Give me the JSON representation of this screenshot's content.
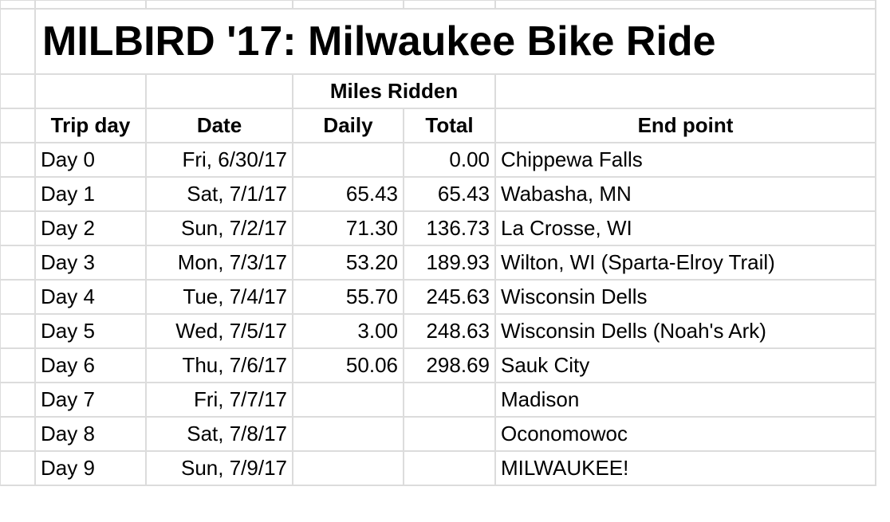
{
  "title": "MILBIRD '17: Milwaukee Bike Ride",
  "group_header": "Miles Ridden",
  "columns": [
    "Trip day",
    "Date",
    "Daily",
    "Total",
    "End point"
  ],
  "rows": [
    {
      "day": "Day 0",
      "date": "Fri, 6/30/17",
      "daily": "",
      "total": "0.00",
      "end": "Chippewa Falls"
    },
    {
      "day": "Day 1",
      "date": "Sat, 7/1/17",
      "daily": "65.43",
      "total": "65.43",
      "end": "Wabasha, MN"
    },
    {
      "day": "Day 2",
      "date": "Sun, 7/2/17",
      "daily": "71.30",
      "total": "136.73",
      "end": "La Crosse, WI"
    },
    {
      "day": "Day 3",
      "date": "Mon, 7/3/17",
      "daily": "53.20",
      "total": "189.93",
      "end": "Wilton, WI (Sparta-Elroy Trail)"
    },
    {
      "day": "Day 4",
      "date": "Tue, 7/4/17",
      "daily": "55.70",
      "total": "245.63",
      "end": "Wisconsin Dells"
    },
    {
      "day": "Day 5",
      "date": "Wed, 7/5/17",
      "daily": "3.00",
      "total": "248.63",
      "end": "Wisconsin Dells (Noah's Ark)"
    },
    {
      "day": "Day 6",
      "date": "Thu, 7/6/17",
      "daily": "50.06",
      "total": "298.69",
      "end": "Sauk City"
    },
    {
      "day": "Day 7",
      "date": "Fri, 7/7/17",
      "daily": "",
      "total": "",
      "end": "Madison"
    },
    {
      "day": "Day 8",
      "date": "Sat, 7/8/17",
      "daily": "",
      "total": "",
      "end": "Oconomowoc"
    },
    {
      "day": "Day 9",
      "date": "Sun, 7/9/17",
      "daily": "",
      "total": "",
      "end": "MILWAUKEE!"
    }
  ]
}
